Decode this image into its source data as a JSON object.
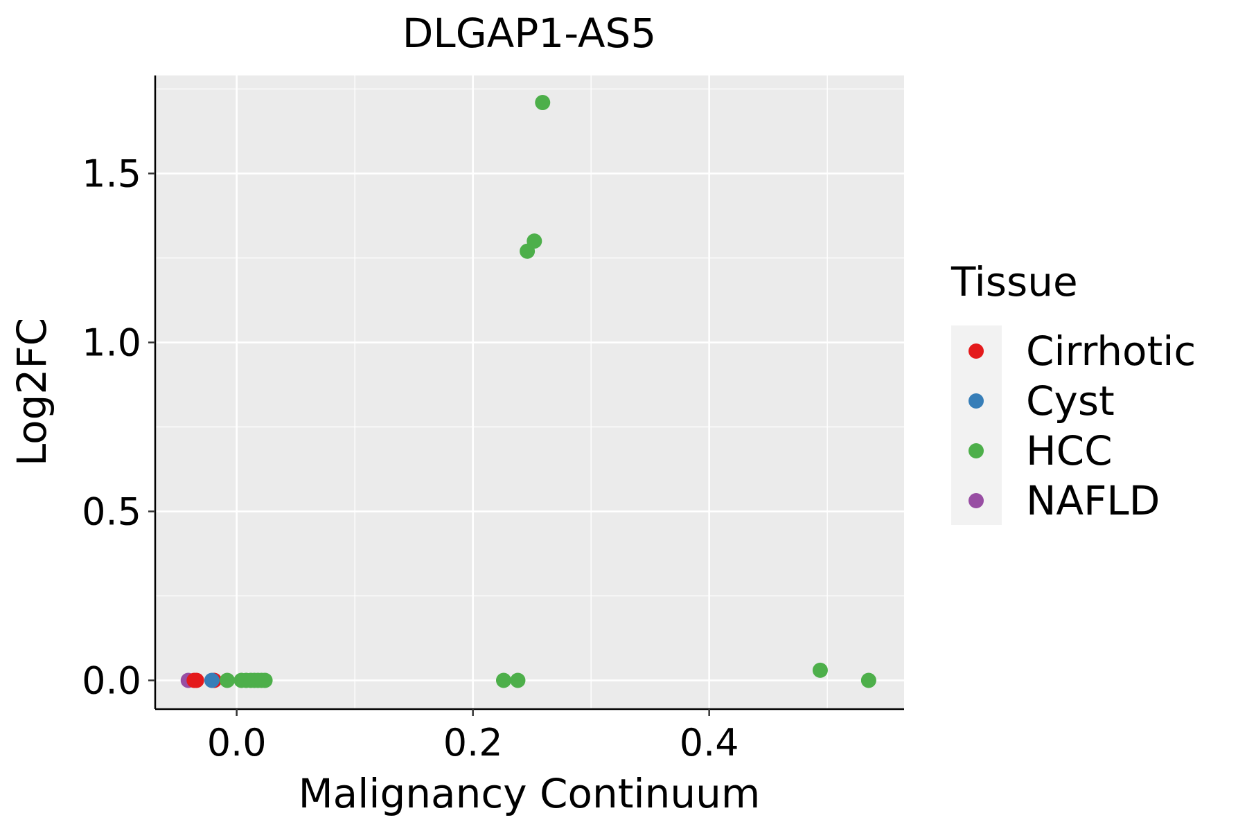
{
  "chart_data": {
    "type": "scatter",
    "title": "DLGAP1-AS5",
    "xlabel": "Malignancy Continuum",
    "ylabel": "Log2FC",
    "xlim": [
      -0.069,
      0.565
    ],
    "ylim": [
      -0.085,
      1.79
    ],
    "x_ticks": [
      0.0,
      0.2,
      0.4
    ],
    "x_tick_labels": [
      "0.0",
      "0.2",
      "0.4"
    ],
    "x_minor": [
      -0.1,
      0.1,
      0.3,
      0.5
    ],
    "y_ticks": [
      0.0,
      0.5,
      1.0,
      1.5
    ],
    "y_tick_labels": [
      "0.0",
      "0.5",
      "1.0",
      "1.5"
    ],
    "y_minor": [
      0.25,
      0.75,
      1.25,
      1.75
    ],
    "grid": true,
    "legend": {
      "title": "Tissue",
      "position": "right",
      "entries": [
        {
          "name": "Cirrhotic",
          "color": "#E41A1C"
        },
        {
          "name": "Cyst",
          "color": "#377EB8"
        },
        {
          "name": "HCC",
          "color": "#4DAF4A"
        },
        {
          "name": "NAFLD",
          "color": "#984EA3"
        }
      ]
    },
    "series": [
      {
        "name": "NAFLD",
        "color": "#984EA3",
        "points": [
          [
            -0.041,
            0.0
          ]
        ]
      },
      {
        "name": "Cirrhotic",
        "color": "#E41A1C",
        "points": [
          [
            -0.036,
            0.0
          ],
          [
            -0.034,
            0.0
          ],
          [
            -0.019,
            0.0
          ]
        ]
      },
      {
        "name": "Cyst",
        "color": "#377EB8",
        "points": [
          [
            -0.021,
            0.0
          ]
        ]
      },
      {
        "name": "HCC",
        "color": "#4DAF4A",
        "points": [
          [
            -0.008,
            0.0
          ],
          [
            0.004,
            0.0
          ],
          [
            0.008,
            0.0
          ],
          [
            0.012,
            0.0
          ],
          [
            0.015,
            0.0
          ],
          [
            0.018,
            0.0
          ],
          [
            0.021,
            0.0
          ],
          [
            0.024,
            0.0
          ],
          [
            0.226,
            0.0
          ],
          [
            0.238,
            0.0
          ],
          [
            0.246,
            1.27
          ],
          [
            0.252,
            1.3
          ],
          [
            0.259,
            1.71
          ],
          [
            0.494,
            0.03
          ],
          [
            0.535,
            0.0
          ]
        ]
      }
    ]
  }
}
